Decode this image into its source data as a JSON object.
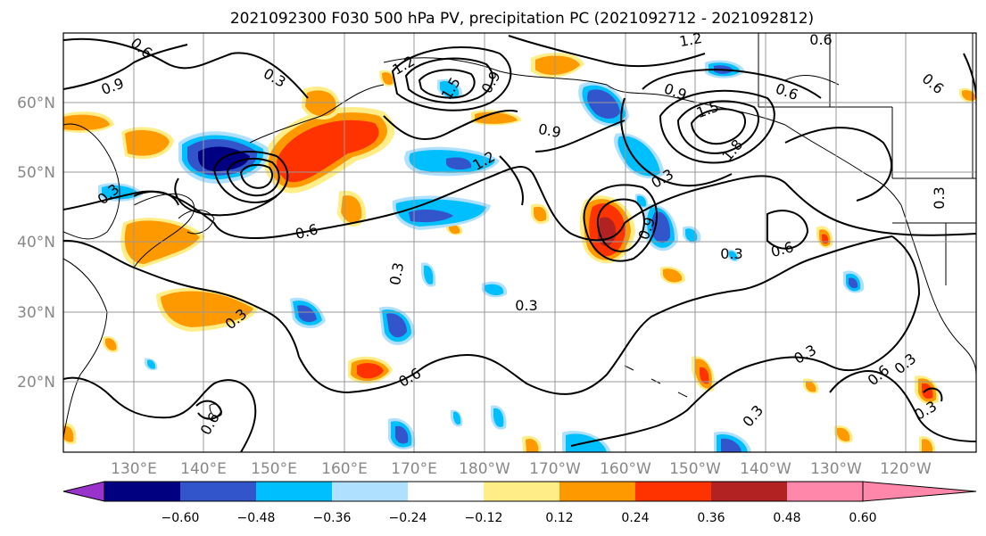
{
  "title": "2021092300 F030 500 hPa PV, precipitation PC (2021092712 - 2021092812)",
  "map": {
    "lat_labels": [
      "60°N",
      "50°N",
      "40°N",
      "30°N",
      "20°N"
    ],
    "lon_labels": [
      "130°E",
      "140°E",
      "150°E",
      "160°E",
      "170°E",
      "180°W",
      "170°W",
      "160°W",
      "150°W",
      "140°W",
      "130°W",
      "120°W"
    ],
    "contour_labels": [
      "0.6",
      "0.9",
      "0.3",
      "1.2",
      "1.5",
      "0.9",
      "1.2",
      "1.5",
      "1.8",
      "0.9",
      "0.6",
      "0.3",
      "0.6",
      "0.3",
      "0.9",
      "0.6",
      "0.3",
      "0.3",
      "0.6",
      "0.3",
      "0.3",
      "0.6",
      "0.3",
      "0.3",
      "0.3",
      "0.3",
      "0.6",
      "0.6",
      "0.3",
      "0.9",
      "0.6",
      "1.2"
    ]
  },
  "colorbar": {
    "ticks": [
      "−0.60",
      "−0.48",
      "−0.36",
      "−0.24",
      "−0.12",
      "0.12",
      "0.24",
      "0.36",
      "0.48",
      "0.60"
    ],
    "colors": [
      "#9933cc",
      "#000080",
      "#3355cc",
      "#00bfff",
      "#b0e0ff",
      "#ffffff",
      "#ffee88",
      "#ff9900",
      "#ff3300",
      "#b22222",
      "#ff88aa"
    ]
  }
}
